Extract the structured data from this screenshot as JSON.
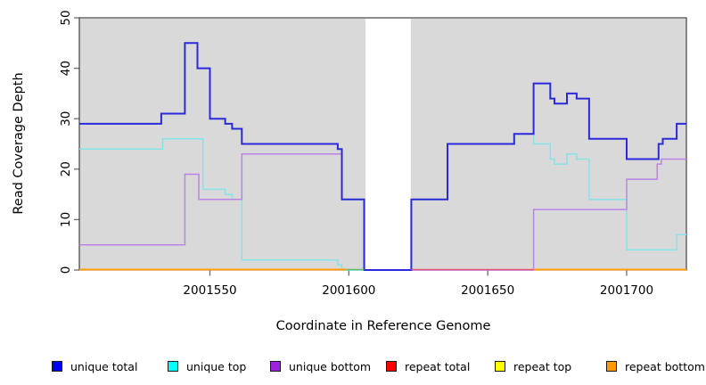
{
  "chart_data": {
    "type": "step-line",
    "title": "",
    "xlabel": "Coordinate in Reference Genome",
    "ylabel": "Read Coverage Depth",
    "xlim": [
      2001503,
      2001721.5
    ],
    "ylim": [
      0,
      50
    ],
    "x_ticks": [
      2001550,
      2001600,
      2001650,
      2001700
    ],
    "y_ticks": [
      0,
      10,
      20,
      30,
      40,
      50
    ],
    "grid": false,
    "masked_region": {
      "from": 2001606,
      "to": 2001622.3
    },
    "series": [
      {
        "name": "unique total",
        "color": "#2a2ada",
        "width": 2,
        "points": [
          [
            2001503,
            29
          ],
          [
            2001532.5,
            31
          ],
          [
            2001541,
            45
          ],
          [
            2001545.5,
            40
          ],
          [
            2001550,
            30
          ],
          [
            2001555.5,
            29
          ],
          [
            2001558,
            28
          ],
          [
            2001561.5,
            25
          ],
          [
            2001596,
            24
          ],
          [
            2001597.5,
            14
          ],
          [
            2001605.5,
            0
          ],
          [
            2001622.5,
            14
          ],
          [
            2001635.5,
            25
          ],
          [
            2001659.5,
            27
          ],
          [
            2001666.5,
            37
          ],
          [
            2001672.5,
            34
          ],
          [
            2001674,
            33
          ],
          [
            2001678.5,
            35
          ],
          [
            2001682,
            34
          ],
          [
            2001686.5,
            26
          ],
          [
            2001700,
            22
          ],
          [
            2001711.5,
            25
          ],
          [
            2001713,
            26
          ],
          [
            2001718,
            29
          ],
          [
            2001721.5,
            29
          ]
        ]
      },
      {
        "name": "unique top",
        "color": "#84e4ea",
        "width": 1.5,
        "points": [
          [
            2001503,
            24
          ],
          [
            2001533,
            26
          ],
          [
            2001547.5,
            16
          ],
          [
            2001555.5,
            15
          ],
          [
            2001558,
            14
          ],
          [
            2001561.5,
            2
          ],
          [
            2001596,
            1
          ],
          [
            2001597.5,
            0
          ],
          [
            2001622.5,
            14
          ],
          [
            2001635.5,
            25
          ],
          [
            2001659.5,
            27
          ],
          [
            2001666.5,
            25
          ],
          [
            2001672.5,
            22
          ],
          [
            2001674,
            21
          ],
          [
            2001678.5,
            23
          ],
          [
            2001682,
            22
          ],
          [
            2001686.5,
            14
          ],
          [
            2001700,
            4
          ],
          [
            2001718,
            7
          ],
          [
            2001721.5,
            7
          ]
        ]
      },
      {
        "name": "unique bottom",
        "color": "#bd82e8",
        "width": 1.5,
        "points": [
          [
            2001503,
            5
          ],
          [
            2001541,
            19
          ],
          [
            2001546,
            14
          ],
          [
            2001561.5,
            23
          ],
          [
            2001597.5,
            14
          ],
          [
            2001605.5,
            0
          ],
          [
            2001666.5,
            12
          ],
          [
            2001700,
            18
          ],
          [
            2001711,
            21
          ],
          [
            2001712.5,
            22
          ],
          [
            2001721.5,
            22
          ]
        ]
      },
      {
        "name": "repeat total",
        "color": "#ff0000",
        "width": 1.5,
        "points": [
          [
            2001503,
            0
          ],
          [
            2001721.5,
            0
          ]
        ]
      },
      {
        "name": "repeat top",
        "color": "#ffff00",
        "width": 1.5,
        "points": [
          [
            2001503,
            0
          ],
          [
            2001721.5,
            0
          ]
        ]
      },
      {
        "name": "repeat bottom",
        "color": "#ff9d00",
        "width": 2,
        "points": [
          [
            2001503,
            0
          ],
          [
            2001721.5,
            0
          ]
        ]
      }
    ],
    "baseline_render_segments": [
      {
        "from": 2001503,
        "to": 2001599,
        "color": "#ff9d00",
        "width": 2
      },
      {
        "from": 2001599,
        "to": 2001605.5,
        "color": "#5cbf70",
        "width": 1.6
      },
      {
        "from": 2001622.5,
        "to": 2001666.5,
        "color": "#e65578",
        "width": 1.6
      },
      {
        "from": 2001666.5,
        "to": 2001721.5,
        "color": "#ff9d00",
        "width": 2
      }
    ],
    "theme": {
      "panel": "#d9d9d9",
      "mask": "#ffffff",
      "frame": "#404040",
      "tick": "#6e6e6e",
      "text": "#000000",
      "background": "#ffffff"
    }
  },
  "legend": {
    "items": [
      {
        "label": "unique total",
        "swatch": "#0000ee"
      },
      {
        "label": "unique top",
        "swatch": "#00ffff"
      },
      {
        "label": "unique bottom",
        "swatch": "#9c22dd"
      },
      {
        "label": "repeat total",
        "swatch": "#ff0000"
      },
      {
        "label": "repeat top",
        "swatch": "#ffff00"
      },
      {
        "label": "repeat bottom",
        "swatch": "#ff9d00"
      }
    ]
  }
}
